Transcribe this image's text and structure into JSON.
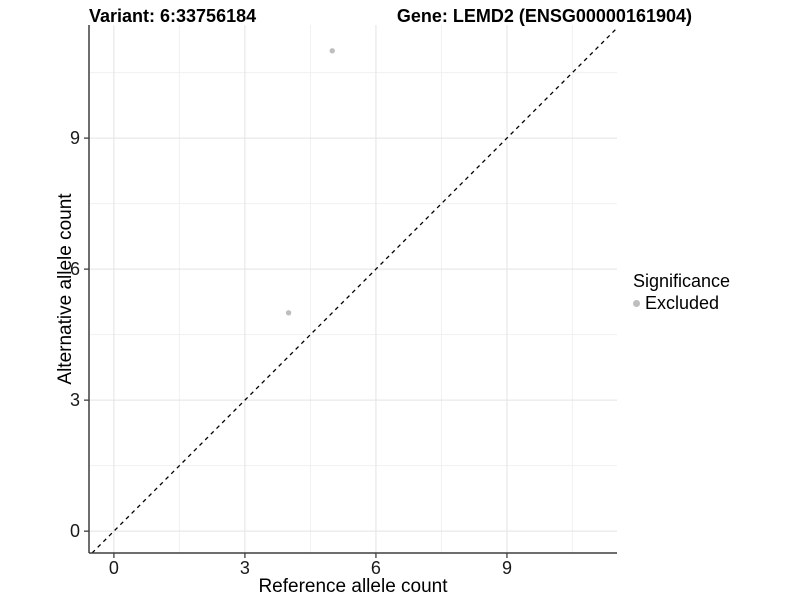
{
  "header": {
    "variant_title": "Variant: 6:33756184",
    "gene_title": "Gene: LEMD2 (ENSG00000161904)"
  },
  "legend": {
    "title": "Significance",
    "items": [
      {
        "label": "Excluded",
        "color": "#BEBEBE",
        "marker": "circle-icon"
      }
    ]
  },
  "colors": {
    "background": "#FFFFFF",
    "point": "#BEBEBE",
    "grid_major": "#E3E3E3",
    "grid_minor": "#F1F1F1",
    "axis_line": "#3F3F3F",
    "tick_label": "#1A1A1A",
    "title_text": "#000000",
    "reference_line": "#000000"
  },
  "chart_data": {
    "type": "scatter",
    "title": "Variant: 6:33756184  |  Gene: LEMD2 (ENSG00000161904)",
    "xlabel": "Reference allele count",
    "ylabel": "Alternative allele count",
    "xlim": [
      -0.57,
      11.52
    ],
    "ylim": [
      -0.5,
      11.59
    ],
    "xticks": [
      0,
      3,
      6,
      9
    ],
    "yticks": [
      0,
      3,
      6,
      9
    ],
    "minor_xticks": [
      1.5,
      4.5,
      7.5,
      10.5
    ],
    "minor_yticks": [
      1.5,
      4.5,
      7.5,
      10.5
    ],
    "grid": true,
    "legend_position": "right",
    "legend_title": "Significance",
    "series": [
      {
        "name": "Excluded",
        "color": "#BEBEBE",
        "points": [
          {
            "x": 5,
            "y": 11
          },
          {
            "x": 4,
            "y": 5
          }
        ]
      }
    ],
    "reference_line": {
      "type": "identity",
      "slope": 1,
      "intercept": 0,
      "style": "dashed",
      "color": "#000000"
    }
  }
}
